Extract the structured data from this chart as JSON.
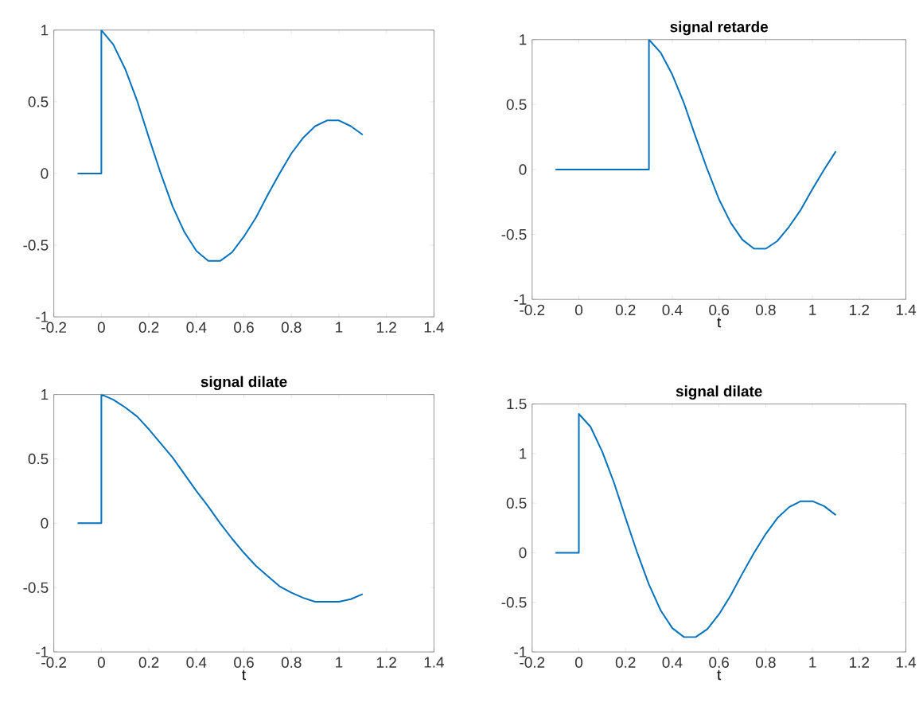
{
  "chart_data": [
    {
      "type": "line",
      "color": "#0072bd",
      "xlim": [
        -0.2,
        1.4
      ],
      "ylim": [
        -1,
        1
      ],
      "xticks": [
        -0.2,
        0,
        0.2,
        0.4,
        0.6,
        0.8,
        1,
        1.2,
        1.4
      ],
      "yticks": [
        -1,
        -0.5,
        0,
        0.5,
        1
      ],
      "x": [
        -0.1,
        0,
        0,
        0.05,
        0.1,
        0.15,
        0.2,
        0.25,
        0.3,
        0.35,
        0.4,
        0.45,
        0.5,
        0.55,
        0.6,
        0.65,
        0.7,
        0.75,
        0.8,
        0.85,
        0.9,
        0.95,
        1.0,
        1.05,
        1.1
      ],
      "values": [
        0,
        0,
        1,
        0.9,
        0.73,
        0.51,
        0.25,
        0,
        -0.23,
        -0.41,
        -0.54,
        -0.61,
        -0.61,
        -0.55,
        -0.44,
        -0.31,
        -0.15,
        0,
        0.14,
        0.25,
        0.33,
        0.37,
        0.37,
        0.33,
        0.27
      ]
    },
    {
      "type": "line",
      "title": "signal retarde",
      "xlabel": "t",
      "color": "#0072bd",
      "xlim": [
        -0.2,
        1.4
      ],
      "ylim": [
        -1,
        1
      ],
      "xticks": [
        -0.2,
        0,
        0.2,
        0.4,
        0.6,
        0.8,
        1,
        1.2,
        1.4
      ],
      "yticks": [
        -1,
        -0.5,
        0,
        0.5,
        1
      ],
      "x": [
        -0.1,
        0.3,
        0.3,
        0.35,
        0.4,
        0.45,
        0.5,
        0.55,
        0.6,
        0.65,
        0.7,
        0.75,
        0.8,
        0.85,
        0.9,
        0.95,
        1.0,
        1.05,
        1.1
      ],
      "values": [
        0,
        0,
        1,
        0.9,
        0.73,
        0.51,
        0.25,
        0,
        -0.23,
        -0.41,
        -0.54,
        -0.61,
        -0.61,
        -0.55,
        -0.44,
        -0.31,
        -0.15,
        0,
        0.14
      ]
    },
    {
      "type": "line",
      "title": "signal dilate",
      "xlabel": "t",
      "color": "#0072bd",
      "xlim": [
        -0.2,
        1.4
      ],
      "ylim": [
        -1,
        1
      ],
      "xticks": [
        -0.2,
        0,
        0.2,
        0.4,
        0.6,
        0.8,
        1,
        1.2,
        1.4
      ],
      "yticks": [
        -1,
        -0.5,
        0,
        0.5,
        1
      ],
      "x": [
        -0.1,
        0,
        0,
        0.05,
        0.1,
        0.15,
        0.2,
        0.25,
        0.3,
        0.35,
        0.4,
        0.45,
        0.5,
        0.55,
        0.6,
        0.65,
        0.7,
        0.75,
        0.8,
        0.85,
        0.9,
        0.95,
        1.0,
        1.05,
        1.1
      ],
      "values": [
        0,
        0,
        1,
        0.96,
        0.9,
        0.83,
        0.73,
        0.62,
        0.51,
        0.38,
        0.25,
        0.13,
        0,
        -0.12,
        -0.23,
        -0.33,
        -0.41,
        -0.49,
        -0.54,
        -0.58,
        -0.61,
        -0.61,
        -0.61,
        -0.59,
        -0.55
      ]
    },
    {
      "type": "line",
      "title": "signal dilate",
      "xlabel": "t",
      "color": "#0072bd",
      "xlim": [
        -0.2,
        1.4
      ],
      "ylim": [
        -1,
        1.5
      ],
      "xticks": [
        -0.2,
        0,
        0.2,
        0.4,
        0.6,
        0.8,
        1,
        1.2,
        1.4
      ],
      "yticks": [
        -1,
        -0.5,
        0,
        0.5,
        1,
        1.5
      ],
      "x": [
        -0.1,
        0,
        0,
        0.05,
        0.1,
        0.15,
        0.2,
        0.25,
        0.3,
        0.35,
        0.4,
        0.45,
        0.5,
        0.55,
        0.6,
        0.65,
        0.7,
        0.75,
        0.8,
        0.85,
        0.9,
        0.95,
        1.0,
        1.05,
        1.1
      ],
      "values": [
        0,
        0,
        1.4,
        1.27,
        1.02,
        0.71,
        0.35,
        0,
        -0.32,
        -0.58,
        -0.76,
        -0.85,
        -0.85,
        -0.77,
        -0.62,
        -0.43,
        -0.21,
        0,
        0.19,
        0.35,
        0.46,
        0.52,
        0.52,
        0.47,
        0.38
      ]
    }
  ]
}
